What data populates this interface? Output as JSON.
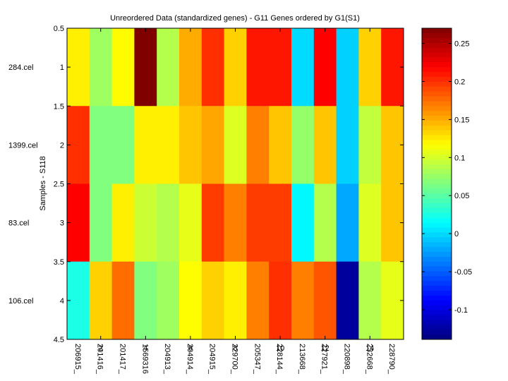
{
  "chart_data": {
    "type": "heatmap",
    "title": "Unreordered Data (standardized genes) - G11 Genes ordered by G1(S1)",
    "xlabel": "",
    "ylabel": "Samples - S118",
    "columns": [
      "206915_",
      "201416_",
      "201417_",
      "1569316",
      "204913_",
      "204914_",
      "204915_",
      "229700_",
      "205347_",
      "228144_",
      "213668_",
      "227921_",
      "220898_",
      "232668_",
      "228790_"
    ],
    "rows": [
      "284.cel",
      "1399.cel",
      "83.cel",
      "106.cel"
    ],
    "x_ticks": [
      "2",
      "4",
      "6",
      "8",
      "10",
      "12",
      "14"
    ],
    "x_tick_values": [
      2,
      4,
      6,
      8,
      10,
      12,
      14
    ],
    "y_ticks": [
      "0.5",
      "1",
      "1.5",
      "2",
      "2.5",
      "3",
      "3.5",
      "4",
      "4.5"
    ],
    "y_tick_values": [
      0.5,
      1,
      1.5,
      2,
      2.5,
      3,
      3.5,
      4,
      4.5
    ],
    "xlim": [
      0.5,
      15.5
    ],
    "ylim": [
      0.5,
      4.5
    ],
    "values": [
      [
        0.123,
        0.078,
        0.118,
        0.27,
        0.086,
        0.15,
        0.2,
        0.135,
        0.21,
        0.21,
        0.0,
        0.219,
        -0.004,
        0.135,
        0.21
      ],
      [
        0.2,
        0.066,
        0.066,
        0.123,
        0.123,
        0.14,
        0.152,
        0.103,
        0.168,
        0.14,
        0.074,
        0.14,
        -0.004,
        0.092,
        0.14
      ],
      [
        0.219,
        0.066,
        0.123,
        0.096,
        0.086,
        0.107,
        0.195,
        0.168,
        0.195,
        0.195,
        0.012,
        0.086,
        -0.02,
        0.103,
        0.14
      ],
      [
        0.025,
        0.135,
        0.175,
        0.066,
        0.078,
        0.117,
        0.135,
        0.123,
        0.168,
        0.2,
        0.168,
        0.185,
        -0.127,
        0.086,
        0.107
      ]
    ],
    "colormap": "jet",
    "clim": [
      -0.139,
      0.27
    ],
    "colorbar": {
      "ticks": [
        "-0.1",
        "-0.05",
        "0",
        "0.05",
        "0.1",
        "0.15",
        "0.2",
        "0.25"
      ],
      "tick_values": [
        -0.1,
        -0.05,
        0,
        0.05,
        0.1,
        0.15,
        0.2,
        0.25
      ],
      "placement": "right"
    },
    "grid": false
  }
}
